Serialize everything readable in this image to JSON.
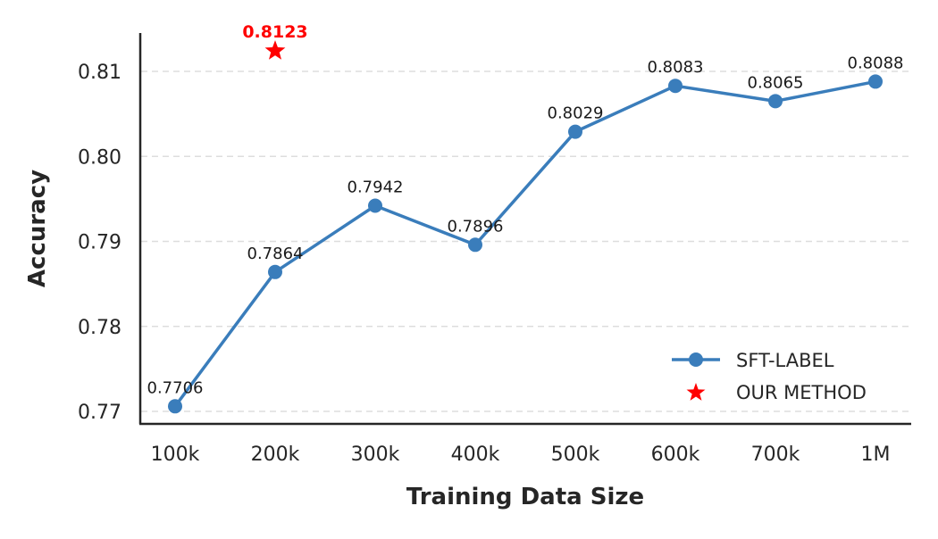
{
  "chart_data": {
    "type": "line",
    "title": "",
    "xlabel": "Training Data Size",
    "ylabel": "Accuracy",
    "categories": [
      "100k",
      "200k",
      "300k",
      "400k",
      "500k",
      "600k",
      "700k",
      "1M"
    ],
    "ylim": [
      0.769,
      0.8145
    ],
    "yticks": [
      "0.77",
      "0.78",
      "0.79",
      "0.80",
      "0.81"
    ],
    "ytick_values": [
      0.77,
      0.78,
      0.79,
      0.8,
      0.81
    ],
    "grid": "horizontal dashed",
    "legend_position": "lower right",
    "series": [
      {
        "name": "SFT-LABEL",
        "type": "line",
        "marker": "circle",
        "color": "#3a7dbb",
        "values": [
          0.7706,
          0.7864,
          0.7942,
          0.7896,
          0.8029,
          0.8083,
          0.8065,
          0.8088
        ],
        "labels": [
          "0.7706",
          "0.7864",
          "0.7942",
          "0.7896",
          "0.8029",
          "0.8083",
          "0.8065",
          "0.8088"
        ]
      },
      {
        "name": "OUR METHOD",
        "type": "scatter",
        "marker": "star",
        "color": "#ff0000",
        "x": "200k",
        "value": 0.8123,
        "label": "0.8123"
      }
    ]
  },
  "legend": {
    "items": [
      {
        "label": "SFT-LABEL"
      },
      {
        "label": "OUR METHOD"
      }
    ]
  },
  "colors": {
    "line": "#3a7dbb",
    "star": "#ff0000",
    "axis": "#262626",
    "grid": "#dddddd",
    "text": "#262626"
  }
}
